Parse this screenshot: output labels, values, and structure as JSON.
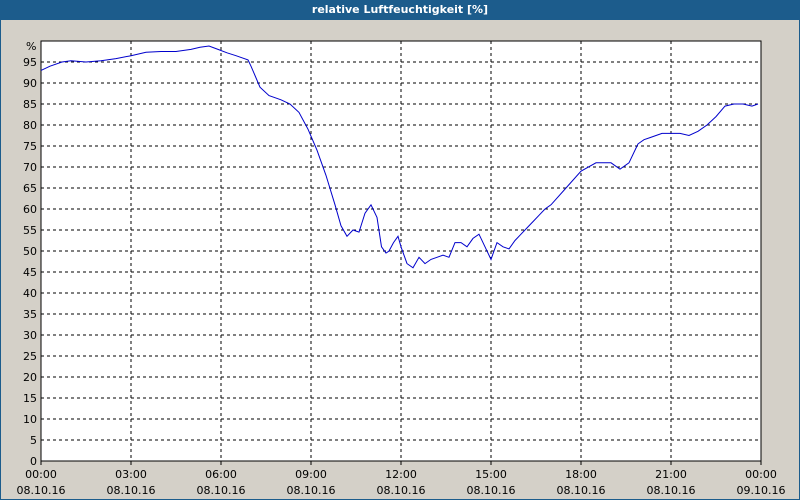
{
  "window": {
    "title": "relative Luftfeuchtigkeit [%]"
  },
  "chart_data": {
    "type": "line",
    "title": "relative Luftfeuchtigkeit [%]",
    "ylabel": "%",
    "ylim": [
      0,
      100
    ],
    "y_ticks": [
      0,
      5,
      10,
      15,
      20,
      25,
      30,
      35,
      40,
      45,
      50,
      55,
      60,
      65,
      70,
      75,
      80,
      85,
      90,
      95
    ],
    "xlim_hours": [
      0,
      24
    ],
    "x_ticks": [
      {
        "hour": 0,
        "time": "00:00",
        "date": "08.10.16"
      },
      {
        "hour": 3,
        "time": "03:00",
        "date": "08.10.16"
      },
      {
        "hour": 6,
        "time": "06:00",
        "date": "08.10.16"
      },
      {
        "hour": 9,
        "time": "09:00",
        "date": "08.10.16"
      },
      {
        "hour": 12,
        "time": "12:00",
        "date": "08.10.16"
      },
      {
        "hour": 15,
        "time": "15:00",
        "date": "08.10.16"
      },
      {
        "hour": 18,
        "time": "18:00",
        "date": "08.10.16"
      },
      {
        "hour": 21,
        "time": "21:00",
        "date": "08.10.16"
      },
      {
        "hour": 24,
        "time": "00:00",
        "date": "09.10.16"
      }
    ],
    "grid": true,
    "line_color": "#0000cc",
    "series": [
      {
        "x": [
          0.0,
          0.3,
          0.7,
          1.0,
          1.5,
          2.0,
          2.5,
          3.0,
          3.5,
          4.0,
          4.5,
          5.0,
          5.3,
          5.6,
          5.9,
          6.2,
          6.5,
          6.9,
          7.0,
          7.3,
          7.6,
          8.0,
          8.3,
          8.6,
          8.9,
          9.2,
          9.5,
          9.8,
          10.0,
          10.2,
          10.4,
          10.6,
          10.8,
          11.0,
          11.2,
          11.35,
          11.5,
          11.6,
          11.75,
          11.9,
          12.0,
          12.2,
          12.4,
          12.6,
          12.8,
          13.0,
          13.2,
          13.4,
          13.6,
          13.8,
          14.0,
          14.2,
          14.4,
          14.6,
          14.8,
          15.0,
          15.2,
          15.4,
          15.6,
          15.8,
          16.0,
          16.2,
          16.4,
          16.6,
          16.8,
          17.0,
          17.5,
          18.0,
          18.5,
          19.0,
          19.3,
          19.6,
          19.9,
          20.1,
          20.3,
          20.5,
          20.7,
          21.0,
          21.3,
          21.6,
          21.9,
          22.2,
          22.5,
          22.8,
          23.1,
          23.4,
          23.7,
          23.9
        ],
        "y": [
          93.0,
          94.0,
          95.0,
          95.3,
          95.0,
          95.3,
          95.8,
          96.5,
          97.3,
          97.5,
          97.5,
          98.0,
          98.5,
          98.8,
          98.0,
          97.2,
          96.5,
          95.5,
          94.0,
          89.0,
          87.0,
          86.0,
          85.0,
          83.0,
          79.0,
          74.0,
          68.0,
          61.0,
          56.0,
          53.5,
          55.0,
          54.5,
          59.0,
          61.0,
          58.0,
          51.0,
          49.5,
          50.0,
          52.0,
          53.5,
          51.0,
          47.0,
          46.0,
          48.5,
          47.0,
          48.0,
          48.5,
          49.0,
          48.5,
          52.0,
          52.0,
          51.0,
          53.0,
          54.0,
          51.0,
          48.0,
          52.0,
          51.0,
          50.5,
          52.5,
          54.0,
          55.5,
          57.0,
          58.5,
          60.0,
          61.0,
          65.0,
          69.0,
          71.0,
          71.0,
          69.5,
          71.0,
          75.5,
          76.5,
          77.0,
          77.5,
          78.0,
          78.0,
          78.0,
          77.5,
          78.5,
          80.0,
          82.0,
          84.5,
          85.0,
          85.0,
          84.5,
          85.0
        ]
      }
    ]
  }
}
